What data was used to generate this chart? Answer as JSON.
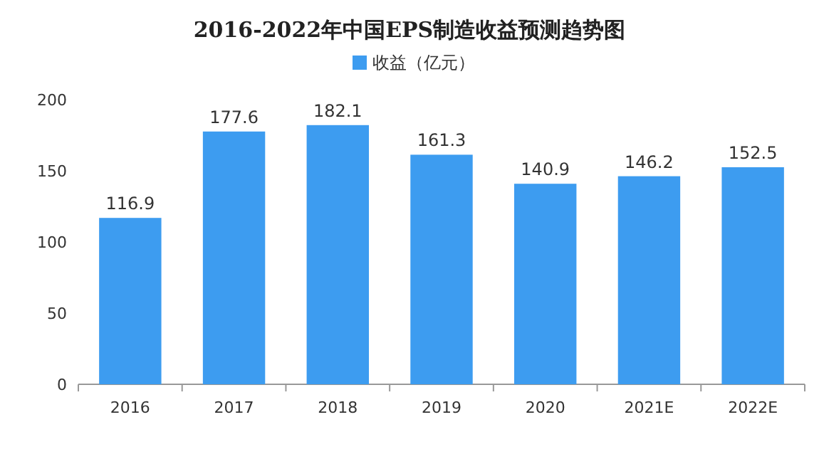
{
  "chart_data": {
    "type": "bar",
    "title": "2016-2022年中国EPS制造收益预测趋势图",
    "categories": [
      "2016",
      "2017",
      "2018",
      "2019",
      "2020",
      "2021E",
      "2022E"
    ],
    "series": [
      {
        "name": "收益（亿元）",
        "color": "#3d9cf0",
        "values": [
          116.9,
          177.6,
          182.1,
          161.3,
          140.9,
          146.2,
          152.5
        ]
      }
    ],
    "ylim": [
      0,
      200
    ],
    "yticks": [
      0,
      50,
      100,
      150,
      200
    ],
    "data_labels": true,
    "legend": "top",
    "grid": false
  }
}
